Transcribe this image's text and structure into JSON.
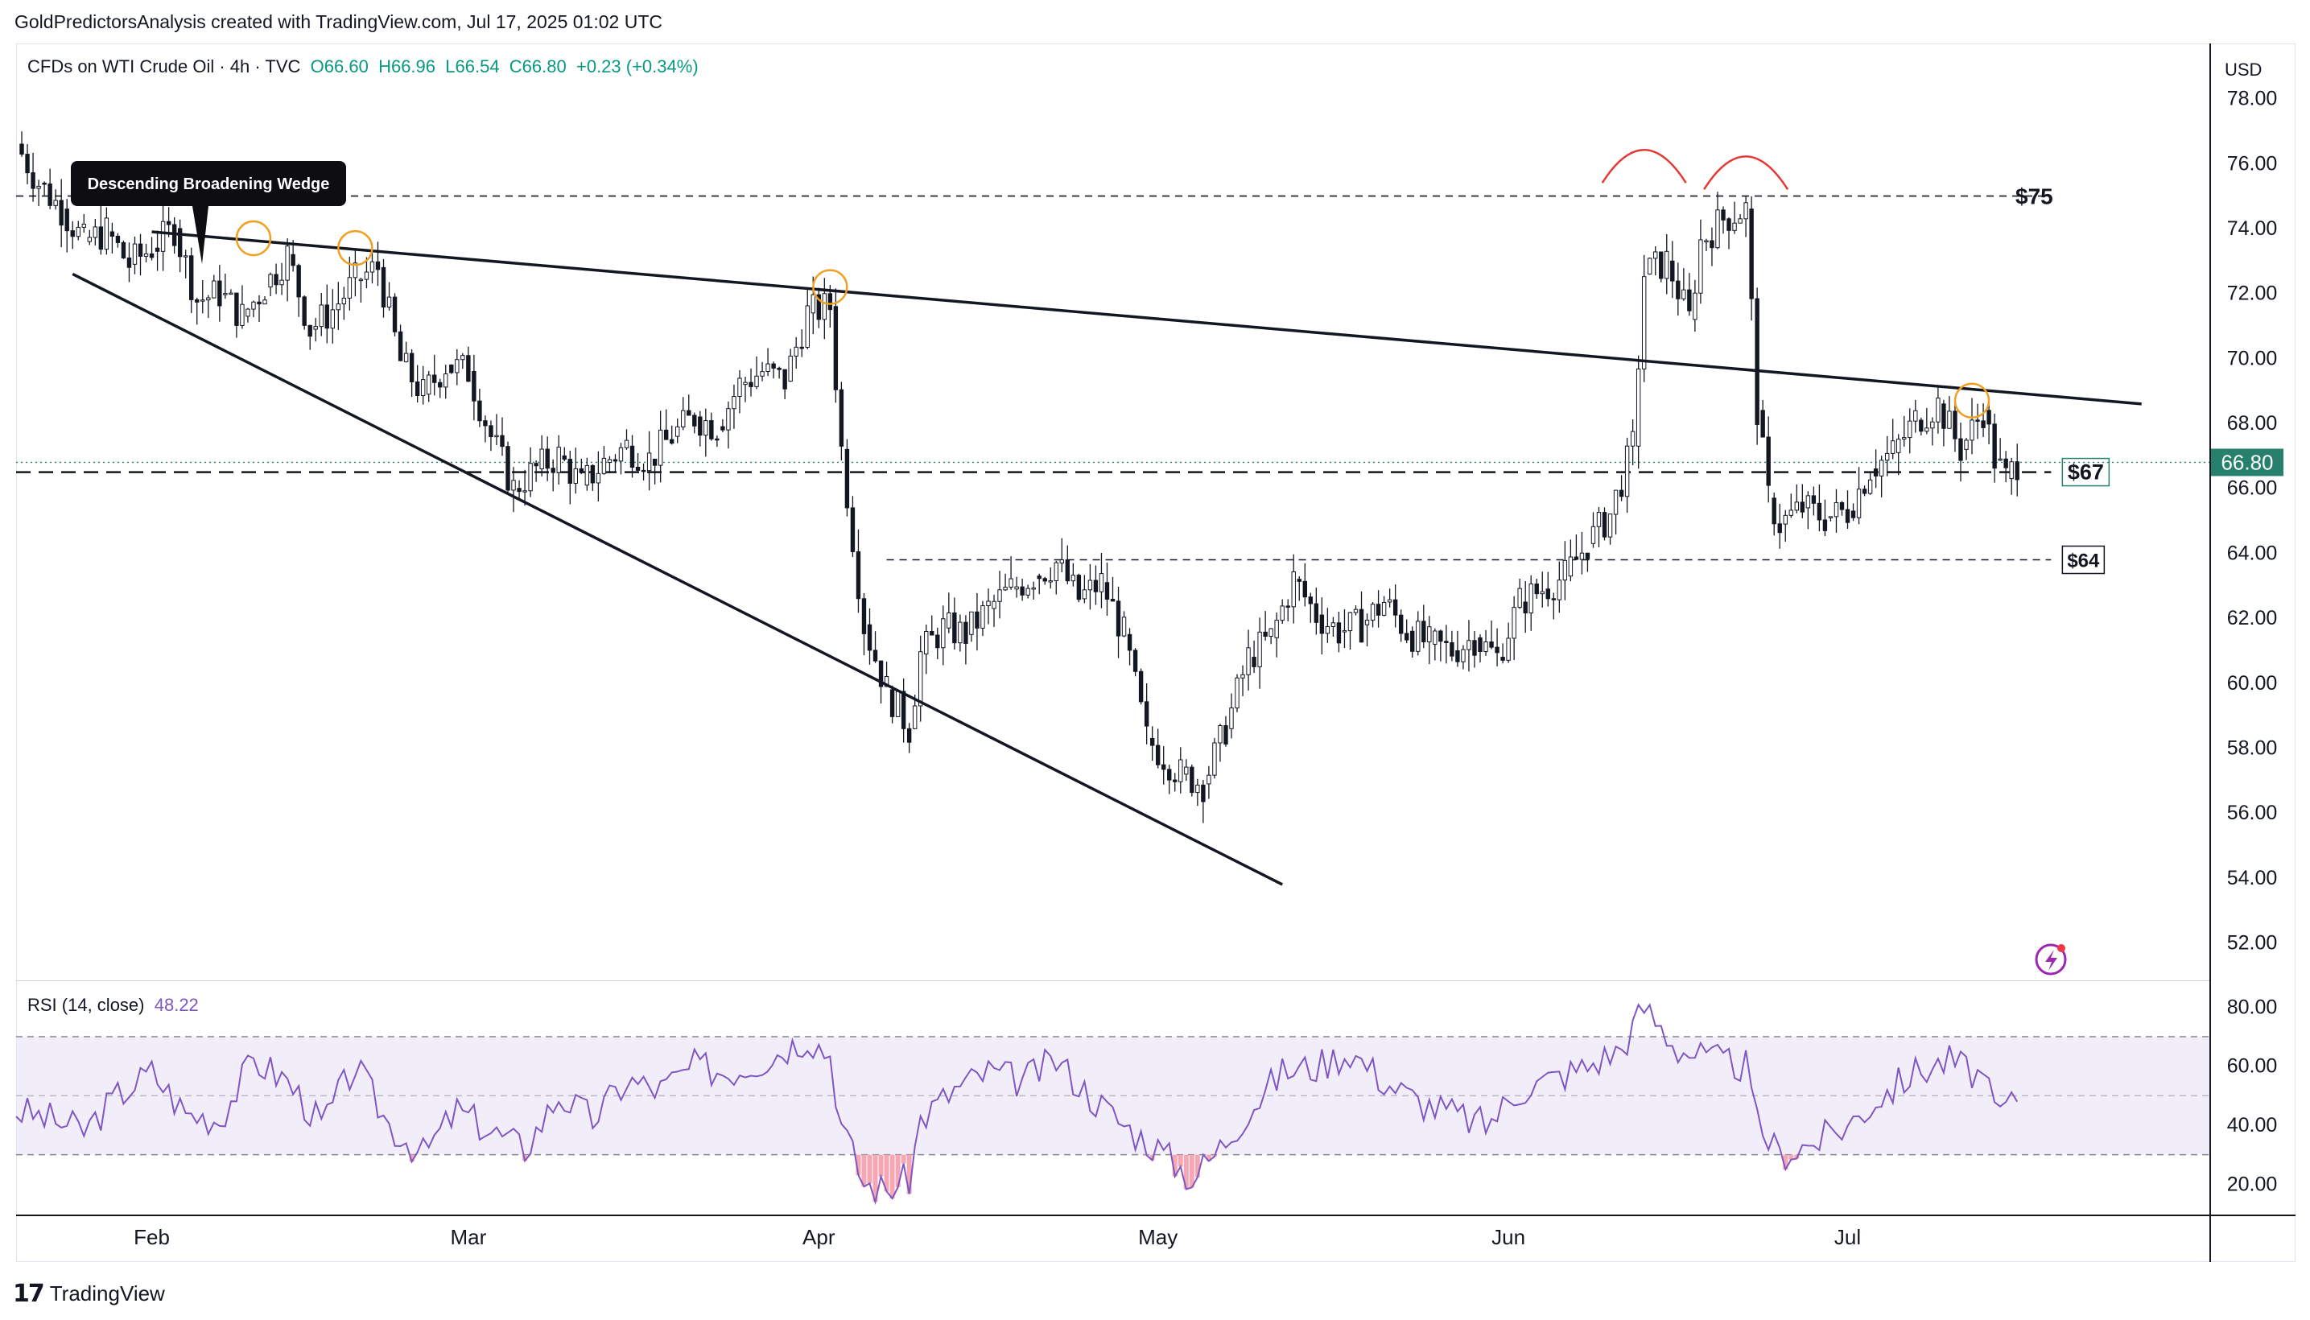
{
  "header": {
    "text": "GoldPredictorsAnalysis created with TradingView.com, Jul 17, 2025 01:02 UTC"
  },
  "legend": {
    "symbol": "CFDs on WTI Crude Oil · 4h · TVC",
    "open": "O66.60",
    "high": "H66.96",
    "low": "L66.54",
    "close": "C66.80",
    "change": "+0.23 (+0.34%)"
  },
  "currency": "USD",
  "footer": {
    "brand": "TradingView"
  },
  "colors": {
    "up": "#089981",
    "down": "#f23645",
    "candle": "#131722",
    "rsi": "#7e57c2",
    "rsi_band": "#ede7f6",
    "pattern_circle": "#f0a020",
    "arc": "#e53935",
    "price_tag": "#26806b"
  },
  "icons": {
    "tv_logo": "tradingview-logo-icon",
    "alert": "lightning-alert-icon"
  },
  "chart_data": [
    {
      "type": "candlestick",
      "title": "CFDs on WTI Crude Oil · 4h · TVC",
      "y_axis_labels": [
        "78.00",
        "76.00",
        "74.00",
        "72.00",
        "70.00",
        "68.00",
        "66.00",
        "64.00",
        "62.00",
        "60.00",
        "58.00",
        "56.00",
        "54.00",
        "52.00"
      ],
      "ylim": [
        50.9,
        79.6
      ],
      "x_axis_labels": [
        "Feb",
        "Mar",
        "Apr",
        "May",
        "Jun",
        "Jul"
      ],
      "last_price_label": "66.80",
      "series_points": [
        [
          "2025-01-20",
          76.6
        ],
        [
          "2025-01-22",
          75.4
        ],
        [
          "2025-01-24",
          74.6
        ],
        [
          "2025-01-26",
          73.6
        ],
        [
          "2025-01-28",
          73.9
        ],
        [
          "2025-01-30",
          72.9
        ],
        [
          "2025-02-01",
          73.4
        ],
        [
          "2025-02-03",
          74.0
        ],
        [
          "2025-02-05",
          71.8
        ],
        [
          "2025-02-07",
          72.0
        ],
        [
          "2025-02-09",
          71.3
        ],
        [
          "2025-02-11",
          72.2
        ],
        [
          "2025-02-13",
          73.2
        ],
        [
          "2025-02-15",
          70.9
        ],
        [
          "2025-02-17",
          71.5
        ],
        [
          "2025-02-19",
          72.4
        ],
        [
          "2025-02-21",
          72.8
        ],
        [
          "2025-02-23",
          69.9
        ],
        [
          "2025-02-25",
          68.9
        ],
        [
          "2025-02-27",
          69.8
        ],
        [
          "2025-03-01",
          69.6
        ],
        [
          "2025-03-03",
          67.6
        ],
        [
          "2025-03-05",
          66.0
        ],
        [
          "2025-03-07",
          66.6
        ],
        [
          "2025-03-09",
          67.0
        ],
        [
          "2025-03-11",
          66.1
        ],
        [
          "2025-03-13",
          66.8
        ],
        [
          "2025-03-15",
          67.3
        ],
        [
          "2025-03-17",
          66.9
        ],
        [
          "2025-03-19",
          67.6
        ],
        [
          "2025-03-21",
          68.2
        ],
        [
          "2025-03-23",
          67.9
        ],
        [
          "2025-03-25",
          69.2
        ],
        [
          "2025-03-27",
          69.6
        ],
        [
          "2025-03-29",
          69.3
        ],
        [
          "2025-03-31",
          71.4
        ],
        [
          "2025-04-02",
          71.6
        ],
        [
          "2025-04-03",
          67.2
        ],
        [
          "2025-04-05",
          61.8
        ],
        [
          "2025-04-07",
          59.8
        ],
        [
          "2025-04-09",
          58.6
        ],
        [
          "2025-04-10",
          60.9
        ],
        [
          "2025-04-12",
          61.7
        ],
        [
          "2025-04-14",
          61.5
        ],
        [
          "2025-04-16",
          62.3
        ],
        [
          "2025-04-18",
          62.9
        ],
        [
          "2025-04-20",
          63.3
        ],
        [
          "2025-04-22",
          63.7
        ],
        [
          "2025-04-24",
          62.6
        ],
        [
          "2025-04-26",
          63.1
        ],
        [
          "2025-04-28",
          61.5
        ],
        [
          "2025-04-30",
          58.3
        ],
        [
          "2025-05-03",
          57.2
        ],
        [
          "2025-05-05",
          56.9
        ],
        [
          "2025-05-07",
          58.6
        ],
        [
          "2025-05-09",
          60.8
        ],
        [
          "2025-05-11",
          61.4
        ],
        [
          "2025-05-13",
          63.2
        ],
        [
          "2025-05-15",
          62.1
        ],
        [
          "2025-05-17",
          61.6
        ],
        [
          "2025-05-19",
          61.8
        ],
        [
          "2025-05-21",
          62.5
        ],
        [
          "2025-05-23",
          61.6
        ],
        [
          "2025-05-25",
          61.2
        ],
        [
          "2025-05-27",
          61.0
        ],
        [
          "2025-05-29",
          61.4
        ],
        [
          "2025-05-31",
          60.8
        ],
        [
          "2025-06-02",
          62.5
        ],
        [
          "2025-06-04",
          62.9
        ],
        [
          "2025-06-06",
          63.3
        ],
        [
          "2025-06-08",
          64.3
        ],
        [
          "2025-06-10",
          65.2
        ],
        [
          "2025-06-12",
          67.3
        ],
        [
          "2025-06-13",
          72.6
        ],
        [
          "2025-06-15",
          73.0
        ],
        [
          "2025-06-17",
          71.2
        ],
        [
          "2025-06-18",
          73.6
        ],
        [
          "2025-06-20",
          74.3
        ],
        [
          "2025-06-22",
          74.6
        ],
        [
          "2025-06-23",
          68.4
        ],
        [
          "2025-06-24",
          65.7
        ],
        [
          "2025-06-25",
          64.9
        ],
        [
          "2025-06-27",
          65.4
        ],
        [
          "2025-06-29",
          65.1
        ],
        [
          "2025-07-01",
          65.3
        ],
        [
          "2025-07-03",
          66.6
        ],
        [
          "2025-07-05",
          67.1
        ],
        [
          "2025-07-07",
          68.1
        ],
        [
          "2025-07-09",
          68.6
        ],
        [
          "2025-07-11",
          67.2
        ],
        [
          "2025-07-13",
          68.4
        ],
        [
          "2025-07-14",
          66.9
        ],
        [
          "2025-07-15",
          66.3
        ],
        [
          "2025-07-16",
          66.8
        ]
      ],
      "x_range": [
        "2025-01-20",
        "2025-08-02"
      ],
      "trendlines": [
        {
          "from": [
            "2025-02-01",
            73.9
          ],
          "to": [
            "2025-07-27",
            68.6
          ],
          "style": "solid"
        },
        {
          "from": [
            "2025-01-25",
            72.6
          ],
          "to": [
            "2025-05-12",
            53.8
          ],
          "style": "solid"
        }
      ],
      "levels": [
        {
          "price": 75.0,
          "label": "$75",
          "from": "2025-01-20",
          "to": "2025-07-19"
        },
        {
          "price": 66.5,
          "label": "$67",
          "from": "2025-01-20",
          "to": "2025-07-19"
        },
        {
          "price": 63.8,
          "label": "$64",
          "from": "2025-04-07",
          "to": "2025-07-19"
        }
      ],
      "annotations": [
        {
          "text": "Descending Broadening Wedge",
          "at": [
            "2025-02-02",
            73.7
          ]
        }
      ],
      "circles": [
        [
          "2025-02-10",
          73.7
        ],
        [
          "2025-02-19",
          73.4
        ],
        [
          "2025-04-02",
          72.2
        ],
        [
          "2025-07-12",
          68.7
        ]
      ],
      "arcs": [
        [
          "2025-06-13",
          76.0
        ],
        [
          "2025-06-22",
          75.8
        ]
      ]
    },
    {
      "type": "line",
      "title": "RSI (14, close)",
      "last_value": "48.22",
      "y_axis_labels": [
        "80.00",
        "60.00",
        "40.00",
        "20.00"
      ],
      "ylim": [
        10,
        88
      ],
      "band": [
        30,
        70
      ],
      "midline": 50,
      "series_points": [
        [
          "2025-01-20",
          45
        ],
        [
          "2025-01-23",
          42
        ],
        [
          "2025-01-26",
          38
        ],
        [
          "2025-01-29",
          50
        ],
        [
          "2025-02-01",
          58
        ],
        [
          "2025-02-04",
          44
        ],
        [
          "2025-02-07",
          42
        ],
        [
          "2025-02-10",
          62
        ],
        [
          "2025-02-13",
          55
        ],
        [
          "2025-02-16",
          40
        ],
        [
          "2025-02-19",
          60
        ],
        [
          "2025-02-22",
          40
        ],
        [
          "2025-02-25",
          30
        ],
        [
          "2025-02-28",
          45
        ],
        [
          "2025-03-03",
          38
        ],
        [
          "2025-03-06",
          32
        ],
        [
          "2025-03-09",
          50
        ],
        [
          "2025-03-12",
          42
        ],
        [
          "2025-03-15",
          55
        ],
        [
          "2025-03-18",
          52
        ],
        [
          "2025-03-21",
          60
        ],
        [
          "2025-03-24",
          58
        ],
        [
          "2025-03-27",
          62
        ],
        [
          "2025-03-31",
          70
        ],
        [
          "2025-04-02",
          64
        ],
        [
          "2025-04-03",
          40
        ],
        [
          "2025-04-05",
          20
        ],
        [
          "2025-04-07",
          18
        ],
        [
          "2025-04-09",
          22
        ],
        [
          "2025-04-10",
          42
        ],
        [
          "2025-04-13",
          52
        ],
        [
          "2025-04-16",
          58
        ],
        [
          "2025-04-19",
          55
        ],
        [
          "2025-04-22",
          62
        ],
        [
          "2025-04-25",
          50
        ],
        [
          "2025-04-28",
          40
        ],
        [
          "2025-05-01",
          32
        ],
        [
          "2025-05-04",
          22
        ],
        [
          "2025-05-06",
          30
        ],
        [
          "2025-05-09",
          45
        ],
        [
          "2025-05-12",
          58
        ],
        [
          "2025-05-15",
          60
        ],
        [
          "2025-05-18",
          65
        ],
        [
          "2025-05-21",
          55
        ],
        [
          "2025-05-24",
          48
        ],
        [
          "2025-05-27",
          44
        ],
        [
          "2025-05-30",
          40
        ],
        [
          "2025-06-02",
          52
        ],
        [
          "2025-06-05",
          56
        ],
        [
          "2025-06-08",
          60
        ],
        [
          "2025-06-11",
          66
        ],
        [
          "2025-06-13",
          80
        ],
        [
          "2025-06-16",
          66
        ],
        [
          "2025-06-19",
          62
        ],
        [
          "2025-06-22",
          60
        ],
        [
          "2025-06-23",
          40
        ],
        [
          "2025-06-25",
          30
        ],
        [
          "2025-06-28",
          34
        ],
        [
          "2025-07-01",
          40
        ],
        [
          "2025-07-04",
          50
        ],
        [
          "2025-07-07",
          58
        ],
        [
          "2025-07-10",
          62
        ],
        [
          "2025-07-13",
          56
        ],
        [
          "2025-07-14",
          44
        ],
        [
          "2025-07-16",
          48
        ]
      ]
    }
  ]
}
